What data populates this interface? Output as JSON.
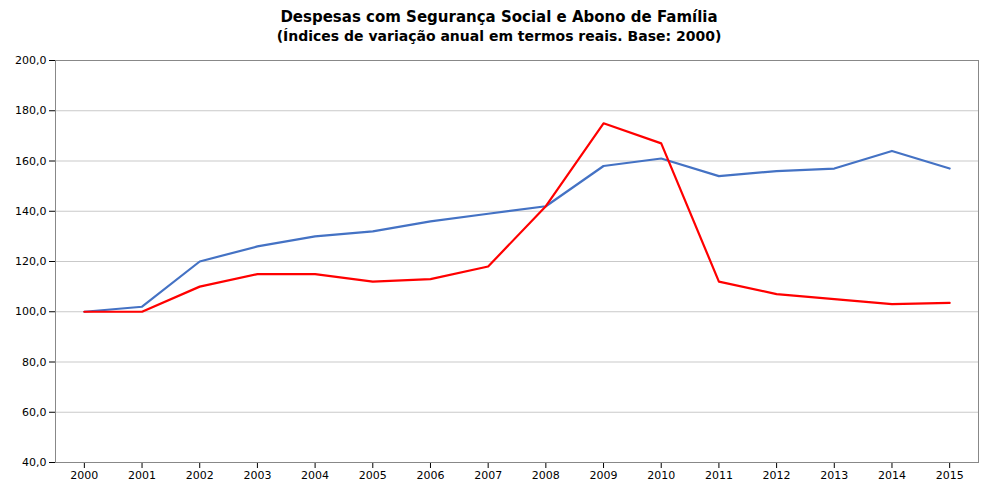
{
  "chart_data": {
    "type": "line",
    "title": "Despesas com Segurança Social e Abono de Família",
    "subtitle": "(Índices de variação anual em termos reais. Base: 2000)",
    "x": [
      2000,
      2001,
      2002,
      2003,
      2004,
      2005,
      2006,
      2007,
      2008,
      2009,
      2010,
      2011,
      2012,
      2013,
      2014,
      2015
    ],
    "series": [
      {
        "color": "#4472C4",
        "values": [
          100.0,
          102.0,
          120.0,
          126.0,
          130.0,
          132.0,
          136.0,
          139.0,
          142.0,
          158.0,
          161.0,
          154.0,
          156.0,
          157.0,
          164.0,
          157.0
        ]
      },
      {
        "color": "#FF0000",
        "values": [
          100.0,
          100.0,
          110.0,
          115.0,
          115.0,
          112.0,
          113.0,
          118.0,
          142.0,
          175.0,
          167.0,
          112.0,
          107.0,
          105.0,
          103.0,
          103.5
        ]
      }
    ],
    "xlim": [
      1999.5,
      2015.5
    ],
    "xticks": [
      2000,
      2001,
      2002,
      2003,
      2004,
      2005,
      2006,
      2007,
      2008,
      2009,
      2010,
      2011,
      2012,
      2013,
      2014,
      2015
    ],
    "ylim": [
      40.0,
      200.0
    ],
    "yticks": [
      {
        "value": 40.0,
        "label": "40,0"
      },
      {
        "value": 60.0,
        "label": "60,0"
      },
      {
        "value": 80.0,
        "label": "80,0"
      },
      {
        "value": 100.0,
        "label": "100,0"
      },
      {
        "value": 120.0,
        "label": "120,0"
      },
      {
        "value": 140.0,
        "label": "140,0"
      },
      {
        "value": 160.0,
        "label": "160,0"
      },
      {
        "value": 180.0,
        "label": "180,0"
      },
      {
        "value": 200.0,
        "label": "200,0"
      }
    ],
    "grid": true
  }
}
